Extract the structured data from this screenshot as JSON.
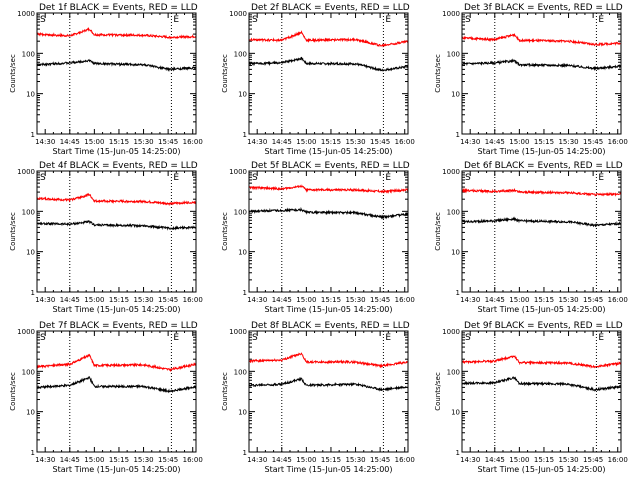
{
  "chart_data": [
    {
      "type": "line",
      "title": "Det 1f BLACK = Events, RED = LLD",
      "ylabel": "Counts/sec",
      "xlabel": "Start Time (15-Jun-05 14:25:00)",
      "ylim": [
        1,
        1000
      ],
      "yscale": "log",
      "xlim": [
        "14:25",
        "16:02"
      ],
      "xticks": [
        "14:30",
        "14:45",
        "15:00",
        "15:15",
        "15:30",
        "15:45",
        "16:00"
      ],
      "yticks": [
        "1",
        "10",
        "100",
        "1000"
      ],
      "markers": {
        "s_time": "14:45",
        "e_time": "15:47",
        "s_label": "S",
        "e_label": "E"
      },
      "colors": {
        "events": "#000000",
        "lld": "#ff0000"
      },
      "series": [
        {
          "name": "Events",
          "values": [
            {
              "x": "14:25",
              "y": 52
            },
            {
              "x": "14:45",
              "y": 58
            },
            {
              "x": "14:57",
              "y": 66
            },
            {
              "x": "15:00",
              "y": 56
            },
            {
              "x": "15:30",
              "y": 52
            },
            {
              "x": "15:46",
              "y": 40
            },
            {
              "x": "16:02",
              "y": 44
            }
          ]
        },
        {
          "name": "LLD",
          "values": [
            {
              "x": "14:25",
              "y": 300
            },
            {
              "x": "14:45",
              "y": 270
            },
            {
              "x": "14:57",
              "y": 400
            },
            {
              "x": "15:00",
              "y": 290
            },
            {
              "x": "15:30",
              "y": 280
            },
            {
              "x": "15:46",
              "y": 250
            },
            {
              "x": "16:02",
              "y": 260
            }
          ]
        }
      ]
    },
    {
      "type": "line",
      "title": "Det 2f BLACK = Events, RED = LLD",
      "ylabel": "Counts/sec",
      "xlabel": "Start Time (15-Jun-05 14:25:00)",
      "ylim": [
        1,
        1000
      ],
      "yscale": "log",
      "xlim": [
        "14:25",
        "16:02"
      ],
      "xticks": [
        "14:30",
        "14:45",
        "15:00",
        "15:15",
        "15:30",
        "15:45",
        "16:00"
      ],
      "yticks": [
        "1",
        "10",
        "100",
        "1000"
      ],
      "markers": {
        "s_time": "14:45",
        "e_time": "15:47",
        "s_label": "S",
        "e_label": "E"
      },
      "colors": {
        "events": "#000000",
        "lld": "#ff0000"
      },
      "series": [
        {
          "name": "Events",
          "values": [
            {
              "x": "14:25",
              "y": 55
            },
            {
              "x": "14:45",
              "y": 58
            },
            {
              "x": "14:57",
              "y": 75
            },
            {
              "x": "15:00",
              "y": 56
            },
            {
              "x": "15:30",
              "y": 55
            },
            {
              "x": "15:46",
              "y": 38
            },
            {
              "x": "16:02",
              "y": 47
            }
          ]
        },
        {
          "name": "LLD",
          "values": [
            {
              "x": "14:25",
              "y": 220
            },
            {
              "x": "14:45",
              "y": 210
            },
            {
              "x": "14:57",
              "y": 330
            },
            {
              "x": "15:00",
              "y": 210
            },
            {
              "x": "15:30",
              "y": 220
            },
            {
              "x": "15:46",
              "y": 155
            },
            {
              "x": "16:02",
              "y": 200
            }
          ]
        }
      ]
    },
    {
      "type": "line",
      "title": "Det 3f BLACK = Events, RED = LLD",
      "ylabel": "Counts/sec",
      "xlabel": "Start Time (15-Jun-05 14:25:00)",
      "ylim": [
        1,
        1000
      ],
      "yscale": "log",
      "xlim": [
        "14:25",
        "16:02"
      ],
      "xticks": [
        "14:30",
        "14:45",
        "15:00",
        "15:15",
        "15:30",
        "15:45",
        "16:00"
      ],
      "yticks": [
        "1",
        "10",
        "100",
        "1000"
      ],
      "markers": {
        "s_time": "14:45",
        "e_time": "15:47",
        "s_label": "S",
        "e_label": "E"
      },
      "colors": {
        "events": "#000000",
        "lld": "#ff0000"
      },
      "series": [
        {
          "name": "Events",
          "values": [
            {
              "x": "14:25",
              "y": 55
            },
            {
              "x": "14:45",
              "y": 58
            },
            {
              "x": "14:57",
              "y": 65
            },
            {
              "x": "15:00",
              "y": 52
            },
            {
              "x": "15:30",
              "y": 50
            },
            {
              "x": "15:46",
              "y": 42
            },
            {
              "x": "16:02",
              "y": 48
            }
          ]
        },
        {
          "name": "LLD",
          "values": [
            {
              "x": "14:25",
              "y": 240
            },
            {
              "x": "14:45",
              "y": 220
            },
            {
              "x": "14:57",
              "y": 290
            },
            {
              "x": "15:00",
              "y": 210
            },
            {
              "x": "15:30",
              "y": 200
            },
            {
              "x": "15:46",
              "y": 165
            },
            {
              "x": "16:02",
              "y": 180
            }
          ]
        }
      ]
    },
    {
      "type": "line",
      "title": "Det 4f BLACK = Events, RED = LLD",
      "ylabel": "Counts/sec",
      "xlabel": "Start Time (15-Jun-05 14:25:00)",
      "ylim": [
        1,
        1000
      ],
      "yscale": "log",
      "xlim": [
        "14:25",
        "16:02"
      ],
      "xticks": [
        "14:30",
        "14:45",
        "15:00",
        "15:15",
        "15:30",
        "15:45",
        "16:00"
      ],
      "yticks": [
        "1",
        "10",
        "100",
        "1000"
      ],
      "markers": {
        "s_time": "14:45",
        "e_time": "15:47",
        "s_label": "S",
        "e_label": "E"
      },
      "colors": {
        "events": "#000000",
        "lld": "#ff0000"
      },
      "series": [
        {
          "name": "Events",
          "values": [
            {
              "x": "14:25",
              "y": 50
            },
            {
              "x": "14:45",
              "y": 48
            },
            {
              "x": "14:57",
              "y": 55
            },
            {
              "x": "15:00",
              "y": 46
            },
            {
              "x": "15:30",
              "y": 44
            },
            {
              "x": "15:46",
              "y": 38
            },
            {
              "x": "16:02",
              "y": 40
            }
          ]
        },
        {
          "name": "LLD",
          "values": [
            {
              "x": "14:25",
              "y": 210
            },
            {
              "x": "14:45",
              "y": 190
            },
            {
              "x": "14:57",
              "y": 260
            },
            {
              "x": "15:00",
              "y": 180
            },
            {
              "x": "15:30",
              "y": 175
            },
            {
              "x": "15:46",
              "y": 155
            },
            {
              "x": "16:02",
              "y": 170
            }
          ]
        }
      ]
    },
    {
      "type": "line",
      "title": "Det 5f BLACK = Events, RED = LLD",
      "ylabel": "Counts/sec",
      "xlabel": "Start Time (15-Jun-05 14:25:00)",
      "ylim": [
        1,
        1000
      ],
      "yscale": "log",
      "xlim": [
        "14:25",
        "16:02"
      ],
      "xticks": [
        "14:30",
        "14:45",
        "15:00",
        "15:15",
        "15:30",
        "15:45",
        "16:00"
      ],
      "yticks": [
        "1",
        "10",
        "100",
        "1000"
      ],
      "markers": {
        "s_time": "14:45",
        "e_time": "15:47",
        "s_label": "S",
        "e_label": "E"
      },
      "colors": {
        "events": "#000000",
        "lld": "#ff0000"
      },
      "series": [
        {
          "name": "Events",
          "values": [
            {
              "x": "14:25",
              "y": 100
            },
            {
              "x": "14:45",
              "y": 105
            },
            {
              "x": "14:57",
              "y": 110
            },
            {
              "x": "15:00",
              "y": 95
            },
            {
              "x": "15:30",
              "y": 92
            },
            {
              "x": "15:46",
              "y": 72
            },
            {
              "x": "16:02",
              "y": 85
            }
          ]
        },
        {
          "name": "LLD",
          "values": [
            {
              "x": "14:25",
              "y": 390
            },
            {
              "x": "14:45",
              "y": 360
            },
            {
              "x": "14:57",
              "y": 420
            },
            {
              "x": "15:00",
              "y": 340
            },
            {
              "x": "15:30",
              "y": 340
            },
            {
              "x": "15:46",
              "y": 310
            },
            {
              "x": "16:02",
              "y": 340
            }
          ]
        }
      ]
    },
    {
      "type": "line",
      "title": "Det 6f BLACK = Events, RED = LLD",
      "ylabel": "Counts/sec",
      "xlabel": "Start Time (15-Jun-05 14:25:00)",
      "ylim": [
        1,
        1000
      ],
      "yscale": "log",
      "xlim": [
        "14:25",
        "16:02"
      ],
      "xticks": [
        "14:30",
        "14:45",
        "15:00",
        "15:15",
        "15:30",
        "15:45",
        "16:00"
      ],
      "yticks": [
        "1",
        "10",
        "100",
        "1000"
      ],
      "markers": {
        "s_time": "14:45",
        "e_time": "15:47",
        "s_label": "S",
        "e_label": "E"
      },
      "colors": {
        "events": "#000000",
        "lld": "#ff0000"
      },
      "series": [
        {
          "name": "Events",
          "values": [
            {
              "x": "14:25",
              "y": 55
            },
            {
              "x": "14:45",
              "y": 58
            },
            {
              "x": "14:57",
              "y": 65
            },
            {
              "x": "15:00",
              "y": 58
            },
            {
              "x": "15:30",
              "y": 55
            },
            {
              "x": "15:46",
              "y": 45
            },
            {
              "x": "16:02",
              "y": 50
            }
          ]
        },
        {
          "name": "LLD",
          "values": [
            {
              "x": "14:25",
              "y": 330
            },
            {
              "x": "14:45",
              "y": 310
            },
            {
              "x": "14:57",
              "y": 330
            },
            {
              "x": "15:00",
              "y": 300
            },
            {
              "x": "15:30",
              "y": 290
            },
            {
              "x": "15:46",
              "y": 260
            },
            {
              "x": "16:02",
              "y": 270
            }
          ]
        }
      ]
    },
    {
      "type": "line",
      "title": "Det 7f BLACK = Events, RED = LLD",
      "ylabel": "Counts/sec",
      "xlabel": "Start Time (15-Jun-05 14:25:00)",
      "ylim": [
        1,
        1000
      ],
      "yscale": "log",
      "xlim": [
        "14:25",
        "16:02"
      ],
      "xticks": [
        "14:30",
        "14:45",
        "15:00",
        "15:15",
        "15:30",
        "15:45",
        "16:00"
      ],
      "yticks": [
        "1",
        "10",
        "100",
        "1000"
      ],
      "markers": {
        "s_time": "14:45",
        "e_time": "15:47",
        "s_label": "S",
        "e_label": "E"
      },
      "colors": {
        "events": "#000000",
        "lld": "#ff0000"
      },
      "series": [
        {
          "name": "Events",
          "values": [
            {
              "x": "14:25",
              "y": 40
            },
            {
              "x": "14:45",
              "y": 45
            },
            {
              "x": "14:57",
              "y": 70
            },
            {
              "x": "15:00",
              "y": 42
            },
            {
              "x": "15:30",
              "y": 42
            },
            {
              "x": "15:46",
              "y": 32
            },
            {
              "x": "16:02",
              "y": 42
            }
          ]
        },
        {
          "name": "LLD",
          "values": [
            {
              "x": "14:25",
              "y": 130
            },
            {
              "x": "14:45",
              "y": 150
            },
            {
              "x": "14:57",
              "y": 250
            },
            {
              "x": "15:00",
              "y": 140
            },
            {
              "x": "15:30",
              "y": 145
            },
            {
              "x": "15:46",
              "y": 110
            },
            {
              "x": "16:02",
              "y": 150
            }
          ]
        }
      ]
    },
    {
      "type": "line",
      "title": "Det 8f BLACK = Events, RED = LLD",
      "ylabel": "Counts/sec",
      "xlabel": "Start Time (15-Jun-05 14:25:00)",
      "ylim": [
        1,
        1000
      ],
      "yscale": "log",
      "xlim": [
        "14:25",
        "16:02"
      ],
      "xticks": [
        "14:30",
        "14:45",
        "15:00",
        "15:15",
        "15:30",
        "15:45",
        "16:00"
      ],
      "yticks": [
        "1",
        "10",
        "100",
        "1000"
      ],
      "markers": {
        "s_time": "14:45",
        "e_time": "15:47",
        "s_label": "S",
        "e_label": "E"
      },
      "colors": {
        "events": "#000000",
        "lld": "#ff0000"
      },
      "series": [
        {
          "name": "Events",
          "values": [
            {
              "x": "14:25",
              "y": 45
            },
            {
              "x": "14:45",
              "y": 48
            },
            {
              "x": "14:57",
              "y": 65
            },
            {
              "x": "15:00",
              "y": 45
            },
            {
              "x": "15:30",
              "y": 48
            },
            {
              "x": "15:46",
              "y": 35
            },
            {
              "x": "16:02",
              "y": 42
            }
          ]
        },
        {
          "name": "LLD",
          "values": [
            {
              "x": "14:25",
              "y": 180
            },
            {
              "x": "14:45",
              "y": 190
            },
            {
              "x": "14:57",
              "y": 280
            },
            {
              "x": "15:00",
              "y": 170
            },
            {
              "x": "15:30",
              "y": 170
            },
            {
              "x": "15:46",
              "y": 135
            },
            {
              "x": "16:02",
              "y": 170
            }
          ]
        }
      ]
    },
    {
      "type": "line",
      "title": "Det 9f BLACK = Events, RED = LLD",
      "ylabel": "Counts/sec",
      "xlabel": "Start Time (15-Jun-05 14:25:00)",
      "ylim": [
        1,
        1000
      ],
      "yscale": "log",
      "xlim": [
        "14:25",
        "16:02"
      ],
      "xticks": [
        "14:30",
        "14:45",
        "15:00",
        "15:15",
        "15:30",
        "15:45",
        "16:00"
      ],
      "yticks": [
        "1",
        "10",
        "100",
        "1000"
      ],
      "markers": {
        "s_time": "14:45",
        "e_time": "15:47",
        "s_label": "S",
        "e_label": "E"
      },
      "colors": {
        "events": "#000000",
        "lld": "#ff0000"
      },
      "series": [
        {
          "name": "Events",
          "values": [
            {
              "x": "14:25",
              "y": 50
            },
            {
              "x": "14:45",
              "y": 52
            },
            {
              "x": "14:57",
              "y": 70
            },
            {
              "x": "15:00",
              "y": 50
            },
            {
              "x": "15:30",
              "y": 48
            },
            {
              "x": "15:46",
              "y": 35
            },
            {
              "x": "16:02",
              "y": 42
            }
          ]
        },
        {
          "name": "LLD",
          "values": [
            {
              "x": "14:25",
              "y": 170
            },
            {
              "x": "14:45",
              "y": 180
            },
            {
              "x": "14:57",
              "y": 240
            },
            {
              "x": "15:00",
              "y": 165
            },
            {
              "x": "15:30",
              "y": 160
            },
            {
              "x": "15:46",
              "y": 130
            },
            {
              "x": "16:02",
              "y": 160
            }
          ]
        }
      ]
    }
  ]
}
